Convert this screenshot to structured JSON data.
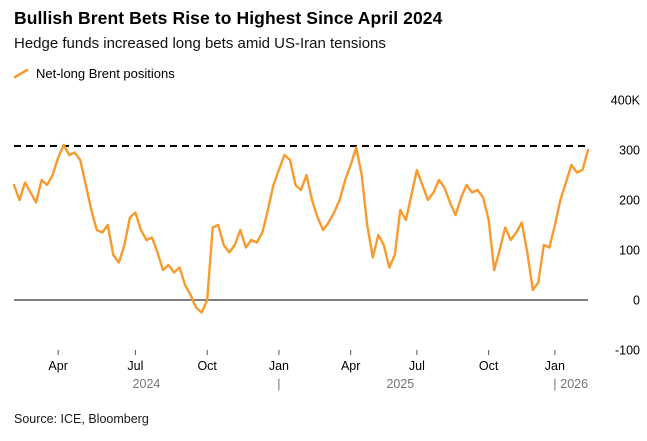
{
  "header": {
    "title": "Bullish Brent Bets Rise to Highest Since April 2024",
    "subtitle": "Hedge funds increased long bets amid US-Iran tensions"
  },
  "source": "Source: ICE, Bloomberg",
  "chart_data": {
    "type": "line",
    "series_name": "Net-long Brent positions",
    "color": "#F79B2E",
    "title": "Bullish Brent Bets Rise to Highest Since April 2024",
    "subtitle": "Hedge funds increased long bets amid US-Iran tensions",
    "ylim": [
      -100,
      400
    ],
    "y_unit": "K",
    "reference_line": {
      "value": 308,
      "style": "dashed"
    },
    "zero_line": {
      "value": 0,
      "style": "solid"
    },
    "values": [
      230,
      200,
      235,
      215,
      195,
      240,
      230,
      250,
      285,
      310,
      290,
      295,
      280,
      230,
      180,
      140,
      135,
      150,
      90,
      75,
      110,
      165,
      175,
      140,
      120,
      125,
      95,
      60,
      70,
      55,
      65,
      30,
      10,
      -15,
      -25,
      0,
      145,
      150,
      110,
      95,
      110,
      140,
      105,
      120,
      115,
      135,
      180,
      230,
      260,
      290,
      280,
      230,
      220,
      250,
      200,
      165,
      140,
      155,
      175,
      200,
      240,
      270,
      305,
      250,
      150,
      85,
      130,
      110,
      65,
      90,
      180,
      160,
      210,
      260,
      230,
      200,
      215,
      240,
      225,
      195,
      170,
      205,
      230,
      215,
      220,
      205,
      160,
      60,
      100,
      145,
      120,
      135,
      155,
      95,
      20,
      35,
      110,
      105,
      150,
      200,
      235,
      270,
      255,
      260,
      300
    ],
    "y_axis": [
      {
        "label": "400K",
        "value": 400
      },
      {
        "label": "300",
        "value": 300
      },
      {
        "label": "200",
        "value": 200
      },
      {
        "label": "100",
        "value": 100
      },
      {
        "label": "0",
        "value": 0
      },
      {
        "label": "-100",
        "value": -100
      }
    ],
    "x_ticks": [
      {
        "label": "Apr",
        "index": 8
      },
      {
        "label": "Jul",
        "index": 22
      },
      {
        "label": "Oct",
        "index": 35
      },
      {
        "label": "Jan",
        "index": 48
      },
      {
        "label": "Apr",
        "index": 61
      },
      {
        "label": "Jul",
        "index": 73
      },
      {
        "label": "Oct",
        "index": 86
      },
      {
        "label": "Jan",
        "index": 98
      }
    ],
    "year_row": [
      {
        "type": "label",
        "text": "2024",
        "index": 24
      },
      {
        "type": "divider",
        "text": "|",
        "index": 48
      },
      {
        "type": "label",
        "text": "2025",
        "index": 70
      },
      {
        "type": "divider",
        "text": "|",
        "index": 98
      },
      {
        "type": "label",
        "text": "2026",
        "index": 101.5
      }
    ]
  }
}
